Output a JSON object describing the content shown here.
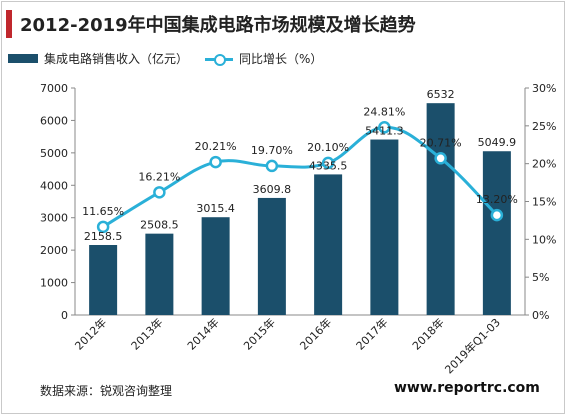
{
  "title": "2012-2019年中国集成电路市场规模及增长趋势",
  "legend": {
    "bar_label": "集成电路销售收入（亿元）",
    "line_label": "同比增长（%）"
  },
  "source": "数据来源：锐观咨询整理",
  "site": "www.reportrc.com",
  "colors": {
    "bar": "#1b4f6b",
    "line": "#2ab0d8",
    "accent": "#c0272d"
  },
  "chart_data": {
    "type": "bar",
    "categories": [
      "2012年",
      "2013年",
      "2014年",
      "2015年",
      "2016年",
      "2017年",
      "2018年",
      "2019年Q1-03"
    ],
    "series": [
      {
        "name": "集成电路销售收入（亿元）",
        "type": "bar",
        "axis": "left",
        "values": [
          2158.5,
          2508.5,
          3015.4,
          3609.8,
          4335.5,
          5411.3,
          6532,
          5049.9
        ],
        "labels": [
          "2158.5",
          "2508.5",
          "3015.4",
          "3609.8",
          "4335.5",
          "5411.3",
          "6532",
          "5049.9"
        ]
      },
      {
        "name": "同比增长（%）",
        "type": "line",
        "axis": "right",
        "values": [
          11.65,
          16.21,
          20.21,
          19.7,
          20.1,
          24.81,
          20.71,
          13.2
        ],
        "labels": [
          "11.65%",
          "16.21%",
          "20.21%",
          "19.70%",
          "20.10%",
          "24.81%",
          "20.71%",
          "13.20%"
        ]
      }
    ],
    "y_left": {
      "ylim": [
        0,
        7000
      ],
      "ticks": [
        "0",
        "1000",
        "2000",
        "3000",
        "4000",
        "5000",
        "6000",
        "7000"
      ]
    },
    "y_right": {
      "ylim": [
        0,
        30
      ],
      "ticks": [
        "0%",
        "5%",
        "10%",
        "15%",
        "20%",
        "25%",
        "30%"
      ]
    },
    "legend_position": "top-left",
    "grid": false
  }
}
